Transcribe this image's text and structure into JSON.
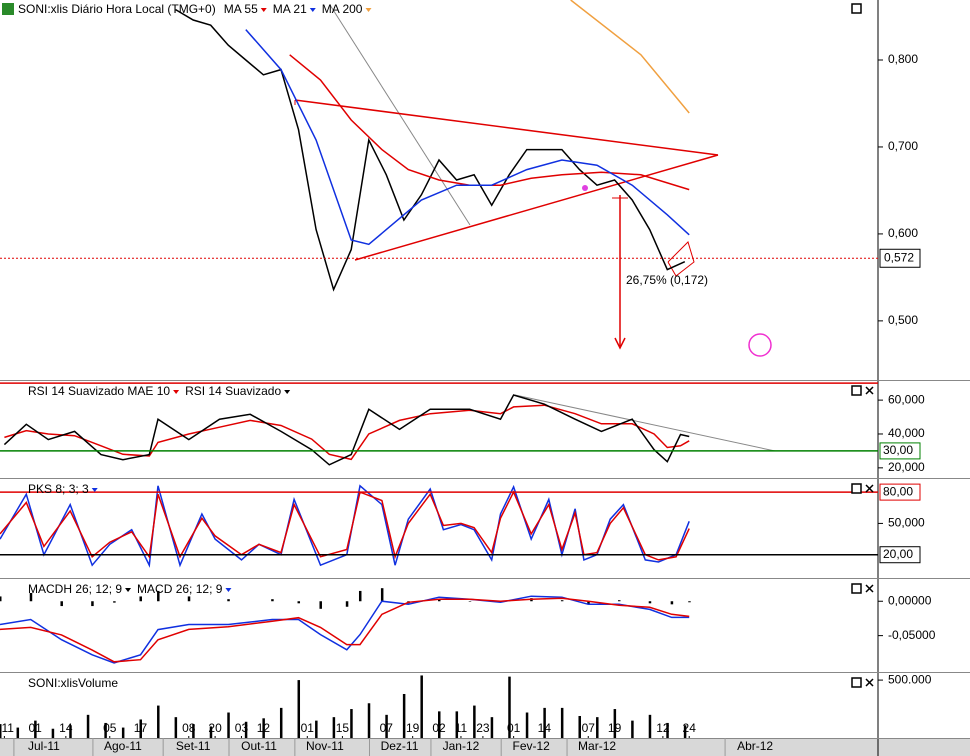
{
  "chart_data": [
    {
      "type": "line",
      "title": "SONI:xlis Diário Hora Local (TMG+0)",
      "xlim": [
        0,
        200
      ],
      "ylim": [
        0.432,
        0.869
      ],
      "yticks": [
        {
          "value": 0.8,
          "label": "0,800"
        },
        {
          "value": 0.7,
          "label": "0,700"
        },
        {
          "value": 0.6,
          "label": "0,600"
        },
        {
          "value": 0.5,
          "label": "0,500"
        }
      ],
      "price_label": {
        "value": 0.572,
        "label": "0,572"
      },
      "annotation": "26,75% (0,172)",
      "series": [
        {
          "color": "#000000",
          "x": [
            40,
            44,
            48,
            52,
            56,
            60,
            64,
            68,
            72,
            76,
            80,
            84,
            88,
            92,
            96,
            100,
            104,
            108,
            112,
            116,
            120,
            124,
            128,
            132,
            136,
            140,
            144,
            148,
            152,
            156
          ],
          "values": [
            0.858,
            0.846,
            0.84,
            0.817,
            0.8,
            0.783,
            0.789,
            0.72,
            0.605,
            0.536,
            0.582,
            0.708,
            0.668,
            0.616,
            0.645,
            0.685,
            0.662,
            0.668,
            0.633,
            0.668,
            0.697,
            0.697,
            0.697,
            0.674,
            0.656,
            0.662,
            0.639,
            0.605,
            0.559,
            0.568
          ]
        },
        {
          "name": "MA 55",
          "color": "#e00000",
          "x": [
            66,
            73,
            80,
            87,
            93,
            100,
            107,
            114,
            121,
            128,
            137,
            146,
            157
          ],
          "values": [
            0.806,
            0.777,
            0.731,
            0.697,
            0.674,
            0.662,
            0.656,
            0.656,
            0.664,
            0.668,
            0.671,
            0.668,
            0.651
          ]
        },
        {
          "name": "MA 21",
          "color": "#1030e0",
          "x": [
            56,
            64,
            72,
            80,
            84,
            88,
            96,
            104,
            112,
            120,
            128,
            136,
            144,
            152,
            157
          ],
          "values": [
            0.835,
            0.789,
            0.708,
            0.593,
            0.588,
            0.605,
            0.639,
            0.656,
            0.656,
            0.674,
            0.685,
            0.679,
            0.656,
            0.622,
            0.599
          ]
        },
        {
          "name": "MA 200",
          "color": "#f0a040",
          "x": [
            130,
            146,
            157
          ],
          "values": [
            0.869,
            0.806,
            0.739
          ]
        }
      ]
    },
    {
      "type": "line",
      "xlim": [
        0,
        200
      ],
      "ylim": [
        14,
        70.7
      ],
      "yticks": [
        {
          "value": 60,
          "label": "60,000"
        },
        {
          "value": 40,
          "label": "40,000"
        },
        {
          "value": 20,
          "label": "20,000"
        }
      ],
      "levels": [
        {
          "value": 70,
          "color": "#e00000"
        },
        {
          "value": 30,
          "label": "30,00",
          "color": "#008000"
        }
      ],
      "series": [
        {
          "name": "RSI 14 Suavizado MAE 10",
          "color": "#e00000",
          "x": [
            1,
            6,
            11,
            17,
            23,
            28,
            34,
            36,
            43,
            50,
            57,
            64,
            71,
            75,
            80,
            84,
            91,
            98,
            107,
            114,
            117,
            124,
            131,
            137,
            144,
            149,
            152,
            155,
            157
          ],
          "values": [
            38,
            42,
            40,
            39,
            33,
            28,
            27,
            35,
            40,
            44,
            48,
            45,
            37,
            28,
            25,
            40,
            48,
            52,
            54,
            52,
            56,
            57,
            52,
            46,
            46,
            40,
            32,
            33,
            36
          ]
        },
        {
          "name": "RSI 14 Suavizado",
          "color": "#000000",
          "x": [
            1,
            6,
            11,
            17,
            23,
            28,
            34,
            36,
            43,
            50,
            57,
            64,
            71,
            75,
            80,
            84,
            91,
            98,
            107,
            114,
            117,
            124,
            131,
            137,
            144,
            149,
            152,
            155,
            157
          ],
          "values": [
            33.7,
            45.7,
            36.7,
            41.5,
            27.8,
            24.8,
            27.8,
            48.7,
            36.7,
            48.7,
            51.6,
            41.5,
            30.7,
            21.8,
            27.8,
            54.6,
            42.7,
            54.6,
            54.6,
            48.7,
            63.0,
            57.6,
            48.7,
            41.5,
            48.7,
            30.7,
            23.6,
            39.7,
            38.5
          ]
        }
      ]
    },
    {
      "type": "line",
      "xlim": [
        0,
        200
      ],
      "ylim": [
        -2.3,
        91.6
      ],
      "yticks": [
        {
          "value": 50,
          "label": "50,000"
        }
      ],
      "levels": [
        {
          "value": 80,
          "label": "80,00",
          "color": "#e00000"
        },
        {
          "value": 20,
          "label": "20,00",
          "color": "#000000"
        }
      ],
      "series": [
        {
          "name": "PKS 8; 3; 3",
          "color": "#1030e0",
          "x": [
            0,
            6,
            10,
            16,
            21,
            25,
            30,
            34,
            36,
            41,
            46,
            49,
            55,
            59,
            64,
            67,
            73,
            79,
            82,
            87,
            90,
            93,
            98,
            101,
            105,
            108,
            112,
            114,
            117,
            121,
            125,
            128,
            131,
            133,
            136,
            139,
            142,
            147,
            150,
            154,
            157
          ],
          "values": [
            35,
            78,
            20,
            68,
            10,
            30,
            44,
            10,
            86,
            10,
            59,
            35,
            15,
            30,
            20,
            73,
            10,
            20,
            86,
            68,
            10,
            54,
            83,
            44,
            49,
            44,
            15,
            59,
            85,
            35,
            73,
            20,
            64,
            15,
            20,
            54,
            68,
            15,
            13,
            20,
            52
          ]
        },
        {
          "color": "#e00000",
          "x": [
            0,
            6,
            10,
            16,
            21,
            25,
            30,
            34,
            36,
            41,
            46,
            49,
            55,
            59,
            64,
            67,
            73,
            79,
            82,
            87,
            90,
            93,
            98,
            101,
            105,
            108,
            112,
            114,
            117,
            121,
            125,
            128,
            131,
            133,
            136,
            139,
            142,
            147,
            150,
            154,
            157
          ],
          "values": [
            40,
            70,
            28,
            62,
            18,
            32,
            42,
            18,
            78,
            18,
            55,
            38,
            20,
            30,
            22,
            68,
            18,
            25,
            80,
            72,
            18,
            50,
            78,
            48,
            50,
            46,
            22,
            55,
            80,
            40,
            68,
            25,
            60,
            20,
            22,
            50,
            65,
            20,
            15,
            18,
            45
          ]
        }
      ]
    },
    {
      "type": "line",
      "xlim": [
        0,
        200
      ],
      "ylim": [
        -0.1029,
        0.0309
      ],
      "yticks": [
        {
          "value": 0,
          "label": "0,00000"
        },
        {
          "value": -0.05,
          "label": "-0,05000"
        }
      ],
      "series": [
        {
          "name": "MACDH 26; 12; 9",
          "type": "bar",
          "color": "#000000",
          "x": [
            0,
            7,
            14,
            21,
            26,
            32,
            36,
            43,
            52,
            62,
            68,
            73,
            79,
            82,
            87,
            93,
            100,
            107,
            114,
            121,
            128,
            134,
            141,
            148,
            153,
            157
          ],
          "values": [
            0.007,
            0.012,
            -0.007,
            -0.007,
            -0.002,
            0.007,
            0.015,
            0.007,
            0.003,
            0.003,
            -0.003,
            -0.011,
            -0.008,
            0.015,
            0.019,
            -0.003,
            0.003,
            0,
            -0.0015,
            0.0045,
            0.0015,
            -0.0044,
            0.0015,
            -0.003,
            -0.0045,
            -0.0015
          ]
        },
        {
          "name": "MACD 26; 12; 9",
          "color": "#1030e0",
          "x": [
            0,
            7,
            14,
            21,
            26,
            32,
            36,
            43,
            52,
            62,
            68,
            73,
            79,
            82,
            87,
            93,
            100,
            107,
            114,
            121,
            128,
            134,
            141,
            148,
            153,
            157
          ],
          "values": [
            -0.0338,
            -0.0265,
            -0.0559,
            -0.0779,
            -0.0897,
            -0.0779,
            -0.0412,
            -0.0338,
            -0.0338,
            -0.0265,
            -0.0265,
            -0.0485,
            -0.0706,
            -0.0485,
            0,
            -0.0044,
            0.0059,
            0.0029,
            -0.0015,
            0.0074,
            0.0059,
            -0.0044,
            -0.0044,
            -0.0118,
            -0.0235,
            -0.0235
          ]
        },
        {
          "color": "#e00000",
          "x": [
            0,
            7,
            14,
            21,
            26,
            32,
            36,
            43,
            52,
            62,
            68,
            73,
            79,
            82,
            87,
            93,
            100,
            107,
            114,
            121,
            128,
            134,
            141,
            148,
            153,
            157
          ],
          "values": [
            -0.041,
            -0.038,
            -0.049,
            -0.071,
            -0.088,
            -0.085,
            -0.056,
            -0.041,
            -0.037,
            -0.029,
            -0.024,
            -0.038,
            -0.063,
            -0.063,
            -0.019,
            -0.0015,
            0.0029,
            0.0029,
            0,
            0.0029,
            0.0044,
            0,
            -0.0059,
            -0.0088,
            -0.019,
            -0.022
          ]
        }
      ]
    },
    {
      "type": "bar",
      "title": "SONI:xlisVolume",
      "xlim": [
        0,
        200
      ],
      "ylim": [
        0,
        552632
      ],
      "yticks": [
        {
          "value": 500000,
          "label": "500.000"
        }
      ],
      "series": [
        {
          "type": "bar",
          "color": "#000000",
          "x": [
            0,
            4,
            8,
            12,
            16,
            20,
            24,
            28,
            32,
            36,
            40,
            44,
            48,
            52,
            56,
            60,
            64,
            68,
            72,
            76,
            80,
            84,
            88,
            92,
            96,
            100,
            104,
            108,
            112,
            116,
            120,
            124,
            128,
            132,
            136,
            140,
            144,
            148,
            152,
            156
          ],
          "values": [
            120000,
            90000,
            150000,
            80000,
            110000,
            200000,
            130000,
            90000,
            160000,
            280000,
            180000,
            120000,
            100000,
            220000,
            140000,
            170000,
            260000,
            500000,
            150000,
            180000,
            250000,
            300000,
            200000,
            380000,
            540000,
            230000,
            230000,
            280000,
            180000,
            530000,
            220000,
            260000,
            260000,
            190000,
            180000,
            250000,
            150000,
            200000,
            130000,
            110000
          ]
        }
      ],
      "xticks": [
        {
          "value": 1,
          "label": "011"
        },
        {
          "value": 8,
          "label": "01"
        },
        {
          "value": 15,
          "label": "14"
        },
        {
          "value": 25,
          "label": "05"
        },
        {
          "value": 32,
          "label": "17"
        },
        {
          "value": 43,
          "label": "08"
        },
        {
          "value": 49,
          "label": "20"
        },
        {
          "value": 55,
          "label": "03"
        },
        {
          "value": 60,
          "label": "12"
        },
        {
          "value": 70,
          "label": "01"
        },
        {
          "value": 78,
          "label": "15"
        },
        {
          "value": 88,
          "label": "07"
        },
        {
          "value": 94,
          "label": "19"
        },
        {
          "value": 100,
          "label": "02"
        },
        {
          "value": 105,
          "label": "11"
        },
        {
          "value": 110,
          "label": "23"
        },
        {
          "value": 117,
          "label": "01"
        },
        {
          "value": 124,
          "label": "14"
        },
        {
          "value": 134,
          "label": "07"
        },
        {
          "value": 140,
          "label": "19"
        },
        {
          "value": 151,
          "label": "12"
        },
        {
          "value": 157,
          "label": "24"
        }
      ],
      "month_ticks": [
        {
          "value": 10,
          "label": "Jul-11"
        },
        {
          "value": 28,
          "label": "Ago-11"
        },
        {
          "value": 44,
          "label": "Set-11"
        },
        {
          "value": 59,
          "label": "Out-11"
        },
        {
          "value": 74,
          "label": "Nov-11"
        },
        {
          "value": 91,
          "label": "Dez-11"
        },
        {
          "value": 105,
          "label": "Jan-12"
        },
        {
          "value": 121,
          "label": "Fev-12"
        },
        {
          "value": 136,
          "label": "Mar-12"
        },
        {
          "value": 172,
          "label": "Abr-12"
        }
      ]
    }
  ]
}
